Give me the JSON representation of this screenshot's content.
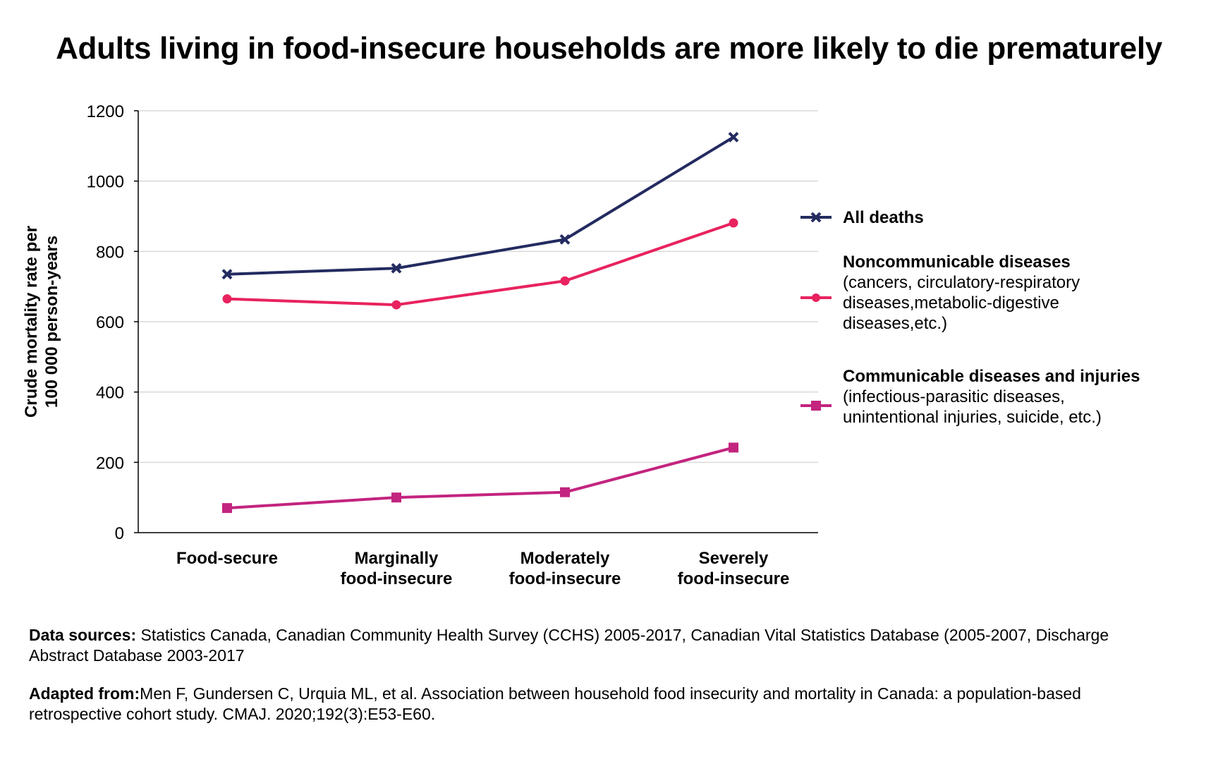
{
  "chart_data": {
    "type": "line",
    "title": "Adults living in food-insecure households are more likely to die prematurely",
    "ylabel_lines": [
      "Crude mortality rate per",
      "100 000 person-years"
    ],
    "ylim": [
      0,
      1200
    ],
    "yticks": [
      0,
      200,
      400,
      600,
      800,
      1000,
      1200
    ],
    "categories": [
      [
        "Food-secure"
      ],
      [
        "Marginally",
        "food-insecure"
      ],
      [
        "Moderately",
        "food-insecure"
      ],
      [
        "Severely",
        "food-insecure"
      ]
    ],
    "grid": true,
    "legend_position": "right",
    "series": [
      {
        "name": "All deaths",
        "description": "",
        "color": "#232B60",
        "marker": "x",
        "values": [
          735,
          752,
          834,
          1125
        ]
      },
      {
        "name": "Noncommunicable diseases",
        "description": "(cancers, circulatory-respiratory\ndiseases,metabolic-digestive\ndiseases,etc.)",
        "color": "#E8235E",
        "marker": "circle",
        "values": [
          665,
          648,
          716,
          881
        ]
      },
      {
        "name": "Communicable diseases and injuries",
        "description": "(infectious-parasitic diseases,\nunintentional injuries, suicide, etc.)",
        "color": "#C3247F",
        "marker": "square",
        "values": [
          70,
          100,
          115,
          242
        ]
      }
    ]
  },
  "footnotes": {
    "sources_label": "Data sources:",
    "sources_text": " Statistics Canada, Canadian Community Health Survey (CCHS) 2005-2017, Canadian Vital Statistics Database (2005-2007, Discharge Abstract Database 2003-2017",
    "adapted_label": "Adapted from:",
    "adapted_text": "Men F, Gundersen C, Urquia ML, et al. Association between household food insecurity and mortality in Canada: a population-based retrospective cohort study. CMAJ. 2020;192(3):E53-E60."
  }
}
